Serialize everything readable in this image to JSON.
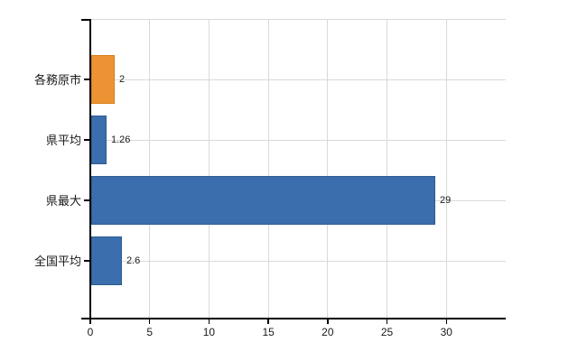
{
  "page": {
    "background_color": "#ffffff",
    "title": "",
    "legend": ""
  },
  "chart_data": {
    "type": "bar",
    "orientation": "horizontal",
    "title": "",
    "xlabel": "",
    "ylabel": "",
    "categories": [
      "各務原市",
      "県平均",
      "県最大",
      "全国平均"
    ],
    "values": [
      2,
      1.26,
      29,
      2.6
    ],
    "value_labels": [
      "2",
      "1.26",
      "29",
      "2.6"
    ],
    "bar_color_names": [
      "orange",
      "blue",
      "blue",
      "blue"
    ],
    "xlim": [
      0,
      35
    ],
    "x_ticks": [
      0,
      5,
      10,
      15,
      20,
      25,
      30
    ],
    "x_tick_labels": [
      "0",
      "5",
      "10",
      "15",
      "20",
      "25",
      "30"
    ],
    "grid": true,
    "legend_position": "none",
    "colors": {
      "blue": "#3a6eac",
      "orange": "#ec9434",
      "gridline": "#d9d9d9",
      "axis": "#000000",
      "text": "#1a1a1a",
      "background": "#ffffff"
    }
  }
}
